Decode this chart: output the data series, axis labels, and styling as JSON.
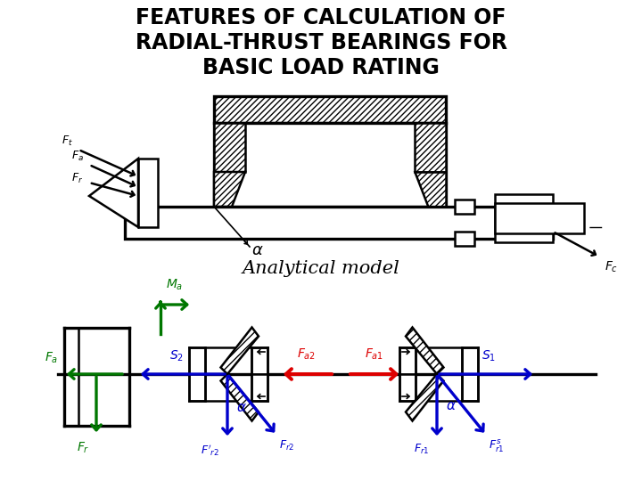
{
  "title_line1": "FEATURES OF CALCULATION OF",
  "title_line2": "RADIAL-THRUST BEARINGS FOR",
  "title_line3": "BASIC LOAD RATING",
  "subtitle": "Analytical model",
  "title_fontsize": 17,
  "subtitle_fontsize": 15,
  "bg_color": "#ffffff",
  "title_color": "#000000",
  "subtitle_color": "#000000",
  "blue": "#0000cc",
  "green": "#007700",
  "red": "#dd0000",
  "black": "#000000"
}
